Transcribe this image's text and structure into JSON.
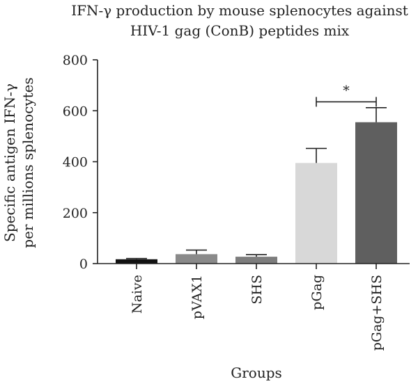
{
  "chart_data": {
    "type": "bar",
    "title_lines": [
      "IFN-γ production by mouse splenocytes against",
      "HIV-1 gag (ConB) peptides mix"
    ],
    "ylabel_lines": [
      "Specific antigen IFN-γ",
      "per millions splenocytes"
    ],
    "xlabel": "Groups",
    "categories": [
      "Naive",
      "pVAX1",
      "SHS",
      "pGag",
      "pGag+SHS"
    ],
    "values": [
      17,
      37,
      27,
      395,
      555
    ],
    "errors": [
      3,
      16,
      8,
      57,
      57
    ],
    "colors": [
      "#111111",
      "#8a8a8a",
      "#7d7d7d",
      "#d8d8d8",
      "#5f5f5f"
    ],
    "ylim": [
      0,
      800
    ],
    "yticks": [
      0,
      200,
      400,
      600,
      800
    ],
    "significance": {
      "from": 3,
      "to": 4,
      "label": "*",
      "y": 635
    },
    "grid": false
  }
}
